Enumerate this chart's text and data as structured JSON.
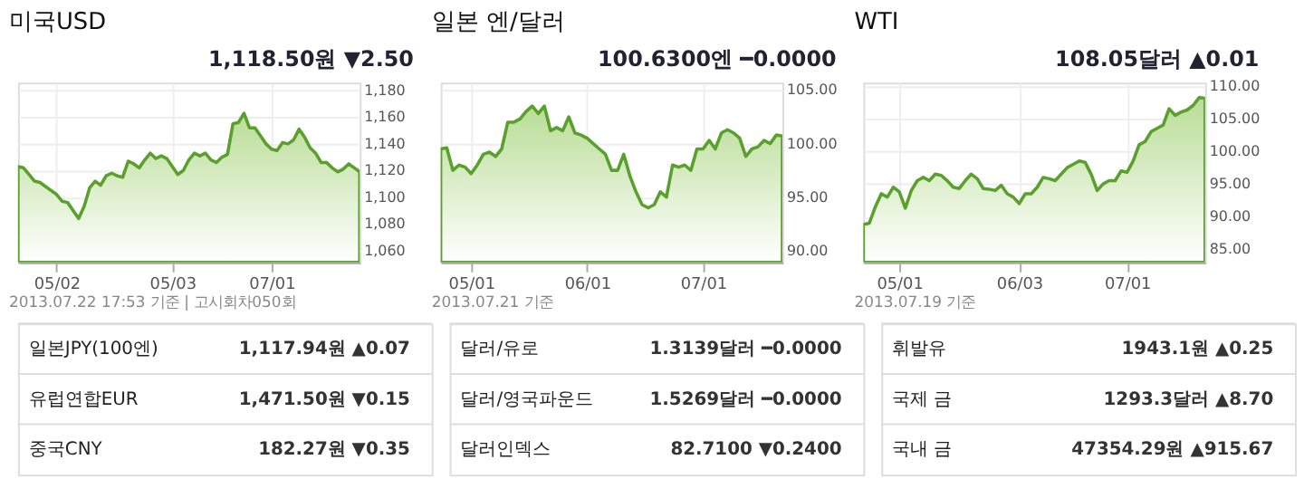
{
  "chart_data": [
    {
      "type": "area",
      "title": "미국USD",
      "annotations": [
        "1,118.50원 ▼2.50",
        "2013.07.22 17:53 기준 | 고시회차050회"
      ],
      "grid": true,
      "categories": [
        null,
        null,
        null,
        null,
        null,
        null,
        null,
        "05/02",
        null,
        null,
        null,
        null,
        null,
        null,
        null,
        null,
        null,
        null,
        null,
        null,
        null,
        null,
        null,
        null,
        null,
        null,
        null,
        null,
        "05/03",
        null,
        null,
        null,
        null,
        null,
        null,
        null,
        null,
        null,
        null,
        null,
        null,
        null,
        null,
        null,
        null,
        null,
        "07/01",
        null,
        null,
        null,
        null,
        null,
        null,
        null,
        null,
        null,
        null,
        null,
        null,
        null,
        null,
        null,
        null
      ],
      "series": [
        {
          "color": "#5aa02c",
          "values": [
            1123,
            1122,
            1117,
            1112,
            1111,
            1108,
            1105,
            1102,
            1097,
            1096,
            1090,
            1084,
            1093,
            1107,
            1112,
            1109,
            1116,
            1118,
            1116,
            1115,
            1127,
            1125,
            1122,
            1128,
            1133,
            1129,
            1131,
            1129,
            1123,
            1117,
            1120,
            1128,
            1133,
            1131,
            1133,
            1128,
            1126,
            1130,
            1132,
            1155,
            1156,
            1163,
            1152,
            1152,
            1146,
            1140,
            1136,
            1135,
            1141,
            1140,
            1143,
            1151,
            1145,
            1137,
            1133,
            1126,
            1126,
            1122,
            1119,
            1121,
            1125,
            1122,
            1119
          ]
        }
      ],
      "ylim": [
        1051,
        1186
      ],
      "yticks": [
        {
          "value": 1060,
          "label": "1,060"
        },
        {
          "value": 1080,
          "label": "1,080"
        },
        {
          "value": 1100,
          "label": "1,100"
        },
        {
          "value": 1120,
          "label": "1,120"
        },
        {
          "value": 1140,
          "label": "1,140"
        },
        {
          "value": 1160,
          "label": "1,160"
        },
        {
          "value": 1180,
          "label": "1,180"
        }
      ]
    },
    {
      "type": "area",
      "title": "일본 엔/달러",
      "annotations": [
        "100.6300엔 ━0.0000",
        "2013.07.21 기준"
      ],
      "grid": true,
      "categories": [
        null,
        null,
        null,
        null,
        null,
        "05/01",
        null,
        null,
        null,
        null,
        null,
        null,
        null,
        null,
        null,
        null,
        null,
        null,
        null,
        null,
        null,
        null,
        null,
        null,
        "06/01",
        null,
        null,
        null,
        null,
        null,
        null,
        null,
        null,
        null,
        null,
        null,
        null,
        null,
        null,
        null,
        null,
        null,
        null,
        "07/01",
        null,
        null,
        null,
        null,
        null,
        null,
        null,
        null,
        null,
        null,
        null,
        null,
        null
      ],
      "series": [
        {
          "color": "#5aa02c",
          "values": [
            99.5,
            99.6,
            97.5,
            98.0,
            97.8,
            97.2,
            98.0,
            99.0,
            99.2,
            98.8,
            99.5,
            102.0,
            102.0,
            102.3,
            103.0,
            103.5,
            102.8,
            103.5,
            101.2,
            101.5,
            101.2,
            102.5,
            101.0,
            100.8,
            100.5,
            100.0,
            99.5,
            99.0,
            97.5,
            97.5,
            99.0,
            97.0,
            95.5,
            94.3,
            94.0,
            94.3,
            95.5,
            95.0,
            98.0,
            97.8,
            98.0,
            97.5,
            99.5,
            99.5,
            100.3,
            99.5,
            101.0,
            101.3,
            101.0,
            100.5,
            98.8,
            99.5,
            99.7,
            100.3,
            100.0,
            100.8,
            100.7
          ]
        }
      ],
      "ylim": [
        88.9,
        105.7
      ],
      "yticks": [
        {
          "value": 90,
          "label": "90.00"
        },
        {
          "value": 95,
          "label": "95.00"
        },
        {
          "value": 100,
          "label": "100.00"
        },
        {
          "value": 105,
          "label": "105.00"
        }
      ]
    },
    {
      "type": "area",
      "title": "WTI",
      "annotations": [
        "108.05달러 ▲0.01",
        "2013.07.19 기준"
      ],
      "grid": true,
      "categories": [
        null,
        null,
        null,
        null,
        null,
        null,
        "05/01",
        null,
        null,
        null,
        null,
        null,
        null,
        null,
        null,
        null,
        null,
        null,
        null,
        null,
        null,
        null,
        null,
        null,
        null,
        null,
        "06/03",
        null,
        null,
        null,
        null,
        null,
        null,
        null,
        null,
        null,
        null,
        null,
        null,
        null,
        null,
        null,
        null,
        null,
        "07/01",
        null,
        null,
        null,
        null,
        null,
        null,
        null,
        null,
        null,
        null,
        null,
        null,
        null
      ],
      "series": [
        {
          "color": "#5aa02c",
          "values": [
            88.8,
            89.0,
            91.5,
            93.5,
            93.0,
            94.5,
            93.8,
            91.3,
            94.0,
            95.5,
            96.0,
            95.5,
            96.5,
            96.3,
            95.5,
            94.5,
            94.3,
            95.5,
            96.5,
            95.8,
            94.3,
            94.2,
            94.0,
            94.8,
            93.5,
            93.0,
            92.0,
            93.5,
            93.5,
            94.5,
            96.0,
            95.8,
            95.5,
            96.5,
            97.5,
            98.0,
            98.5,
            98.3,
            96.5,
            94.0,
            95.0,
            95.5,
            95.5,
            97.0,
            96.8,
            98.5,
            101.0,
            101.5,
            103.0,
            103.5,
            104.0,
            106.5,
            105.5,
            106.0,
            106.3,
            107.0,
            108.2,
            108.1
          ]
        }
      ],
      "ylim": [
        83,
        110.5
      ],
      "yticks": [
        {
          "value": 85,
          "label": "85.00"
        },
        {
          "value": 90,
          "label": "90.00"
        },
        {
          "value": 95,
          "label": "95.00"
        },
        {
          "value": 100,
          "label": "100.00"
        },
        {
          "value": 105,
          "label": "105.00"
        },
        {
          "value": 110,
          "label": "110.00"
        }
      ]
    },
    {
      "type": "other",
      "annotations": [
        "일본JPY(100엔)",
        "1,117.94원 ▲0.07",
        "유럽연합EUR",
        "1,471.50원 ▼0.15",
        "중국CNY",
        "182.27원 ▼0.35"
      ]
    },
    {
      "type": "other",
      "annotations": [
        "달러/유로",
        "1.3139달러 ━0.0000",
        "달러/영국파운드",
        "1.5269달러 ━0.0000",
        "달러인덱스",
        "82.7100 ▼0.2400"
      ]
    },
    {
      "type": "other",
      "annotations": [
        "휘발유",
        "1943.1원 ▲0.25",
        "국제 금",
        "1293.3달러 ▲8.70",
        "국내 금",
        "47354.29원 ▲915.67"
      ]
    }
  ]
}
